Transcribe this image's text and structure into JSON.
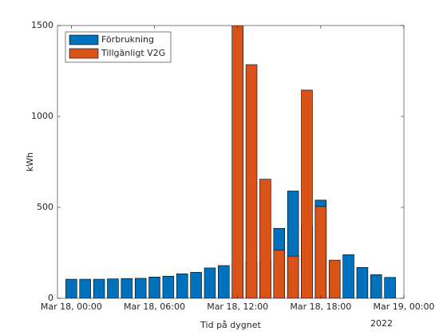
{
  "chart_data": {
    "type": "bar",
    "xlabel": "Tid på dygnet",
    "ylabel": "kWh",
    "x_secondary_label": "2022",
    "x": [
      "2022-03-18T00:00",
      "2022-03-18T01:00",
      "2022-03-18T02:00",
      "2022-03-18T03:00",
      "2022-03-18T04:00",
      "2022-03-18T05:00",
      "2022-03-18T06:00",
      "2022-03-18T07:00",
      "2022-03-18T08:00",
      "2022-03-18T09:00",
      "2022-03-18T10:00",
      "2022-03-18T11:00",
      "2022-03-18T12:00",
      "2022-03-18T13:00",
      "2022-03-18T14:00",
      "2022-03-18T15:00",
      "2022-03-18T16:00",
      "2022-03-18T17:00",
      "2022-03-18T18:00",
      "2022-03-18T19:00",
      "2022-03-18T20:00",
      "2022-03-18T21:00",
      "2022-03-18T22:00",
      "2022-03-18T23:00"
    ],
    "series": [
      {
        "name": "Förbrukning",
        "color": "#0072BD",
        "values": [
          105,
          105,
          105,
          107,
          109,
          110,
          117,
          122,
          135,
          143,
          167,
          180,
          190,
          200,
          210,
          385,
          590,
          400,
          540,
          200,
          240,
          170,
          130,
          115
        ]
      },
      {
        "name": "Tillgänligt V2G",
        "color": "#D95319",
        "values": [
          null,
          null,
          null,
          null,
          null,
          null,
          null,
          null,
          null,
          null,
          null,
          null,
          1600,
          1285,
          655,
          265,
          232,
          1145,
          505,
          210,
          null,
          null,
          null,
          null
        ]
      }
    ],
    "xlim": [
      "2022-03-17T23:00",
      "2022-03-19T00:00"
    ],
    "xticks": [
      {
        "value": "2022-03-18T00:00",
        "label": "Mar 18, 00:00"
      },
      {
        "value": "2022-03-18T06:00",
        "label": "Mar 18, 06:00"
      },
      {
        "value": "2022-03-18T12:00",
        "label": "Mar 18, 12:00"
      },
      {
        "value": "2022-03-18T18:00",
        "label": "Mar 18, 18:00"
      },
      {
        "value": "2022-03-19T00:00",
        "label": "Mar 19, 00:00"
      }
    ],
    "ylim": [
      0,
      1500
    ],
    "yticks": [
      0,
      500,
      1000,
      1500
    ],
    "legend": "top-left",
    "overlay": true
  }
}
